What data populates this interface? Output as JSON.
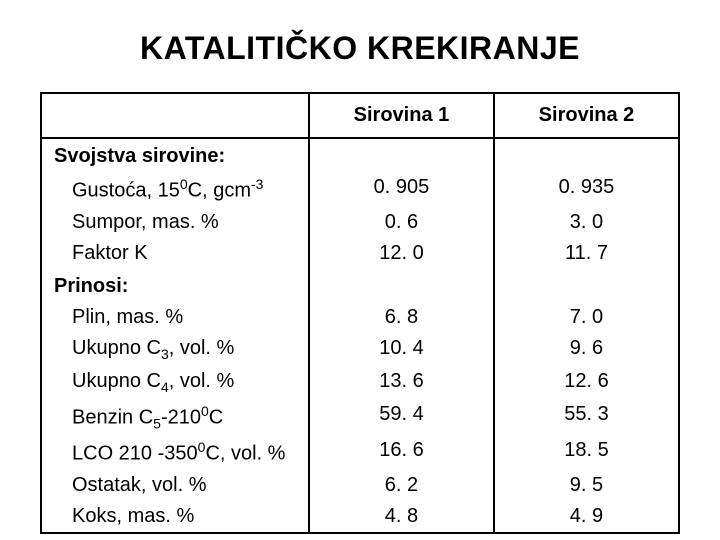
{
  "title": "KATALITIČKO KREKIRANJE",
  "columns": [
    "",
    "Sirovina 1",
    "Sirovina 2"
  ],
  "sections": [
    {
      "heading": "Svojstva sirovine:",
      "rows": [
        {
          "label_html": "Gustoća, 15<span class='sup'>0</span>C, gcm<span class='sup'>-3</span>",
          "v1": "0. 905",
          "v2": "0. 935"
        },
        {
          "label_html": "Sumpor, mas. %",
          "v1": "0. 6",
          "v2": "3. 0"
        },
        {
          "label_html": "Faktor K",
          "v1": "12. 0",
          "v2": "11. 7"
        }
      ]
    },
    {
      "heading": "Prinosi:",
      "rows": [
        {
          "label_html": "Plin, mas. %",
          "v1": "6. 8",
          "v2": "7. 0"
        },
        {
          "label_html": "Ukupno C<span class='sub'>3</span>, vol. %",
          "v1": "10. 4",
          "v2": "9. 6"
        },
        {
          "label_html": "Ukupno C<span class='sub'>4</span>, vol. %",
          "v1": "13. 6",
          "v2": "12. 6"
        },
        {
          "label_html": "Benzin C<span class='sub'>5</span>-210<span class='sup'>0</span>C",
          "v1": "59. 4",
          "v2": "55. 3"
        },
        {
          "label_html": "LCO 210 -350<span class='sup'>0</span>C, vol. %",
          "v1": "16. 6",
          "v2": "18. 5"
        },
        {
          "label_html": "Ostatak, vol. %",
          "v1": "6. 2",
          "v2": "9. 5"
        },
        {
          "label_html": "Koks, mas. %",
          "v1": "4. 8",
          "v2": "4. 9"
        }
      ]
    }
  ],
  "style": {
    "page_bg": "#ffffff",
    "text_color": "#000000",
    "border_color": "#000000",
    "title_fontsize": 32,
    "cell_fontsize": 20,
    "font_family": "Arial",
    "col_widths_pct": [
      42,
      29,
      29
    ]
  }
}
